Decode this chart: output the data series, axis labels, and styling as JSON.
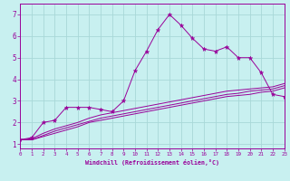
{
  "xlabel": "Windchill (Refroidissement éolien,°C)",
  "background_color": "#c8f0f0",
  "grid_color": "#a8d8d8",
  "line_color": "#990099",
  "xlim": [
    0,
    23
  ],
  "ylim": [
    0.8,
    7.5
  ],
  "xticks": [
    0,
    1,
    2,
    3,
    4,
    5,
    6,
    7,
    8,
    9,
    10,
    11,
    12,
    13,
    14,
    15,
    16,
    17,
    18,
    19,
    20,
    21,
    22,
    23
  ],
  "yticks": [
    1,
    2,
    3,
    4,
    5,
    6,
    7
  ],
  "series": [
    {
      "x": [
        0,
        1,
        2,
        3,
        4,
        5,
        6,
        7,
        8,
        9,
        10,
        11,
        12,
        13,
        14,
        15,
        16,
        17,
        18,
        19,
        20,
        21,
        22,
        23
      ],
      "y": [
        1.2,
        1.3,
        2.0,
        2.1,
        2.7,
        2.7,
        2.7,
        2.6,
        2.5,
        3.0,
        4.4,
        5.3,
        6.3,
        7.0,
        6.5,
        5.9,
        5.4,
        5.3,
        5.5,
        5.0,
        5.0,
        4.3,
        3.3,
        3.2
      ],
      "marker": true
    },
    {
      "x": [
        0,
        1,
        2,
        3,
        4,
        5,
        6,
        7,
        8,
        9,
        10,
        11,
        12,
        13,
        14,
        15,
        16,
        17,
        18,
        19,
        20,
        21,
        22,
        23
      ],
      "y": [
        1.2,
        1.25,
        1.5,
        1.7,
        1.85,
        2.0,
        2.2,
        2.35,
        2.45,
        2.55,
        2.65,
        2.75,
        2.85,
        2.95,
        3.05,
        3.15,
        3.25,
        3.35,
        3.45,
        3.5,
        3.55,
        3.6,
        3.65,
        3.8
      ],
      "marker": false
    },
    {
      "x": [
        0,
        1,
        2,
        3,
        4,
        5,
        6,
        7,
        8,
        9,
        10,
        11,
        12,
        13,
        14,
        15,
        16,
        17,
        18,
        19,
        20,
        21,
        22,
        23
      ],
      "y": [
        1.2,
        1.2,
        1.4,
        1.6,
        1.75,
        1.9,
        2.05,
        2.2,
        2.3,
        2.4,
        2.5,
        2.6,
        2.7,
        2.8,
        2.9,
        3.0,
        3.1,
        3.2,
        3.3,
        3.35,
        3.45,
        3.5,
        3.55,
        3.7
      ],
      "marker": false
    },
    {
      "x": [
        0,
        1,
        2,
        3,
        4,
        5,
        6,
        7,
        8,
        9,
        10,
        11,
        12,
        13,
        14,
        15,
        16,
        17,
        18,
        19,
        20,
        21,
        22,
        23
      ],
      "y": [
        1.2,
        1.2,
        1.35,
        1.5,
        1.65,
        1.8,
        2.0,
        2.1,
        2.2,
        2.3,
        2.4,
        2.5,
        2.6,
        2.7,
        2.8,
        2.9,
        3.0,
        3.1,
        3.2,
        3.25,
        3.3,
        3.4,
        3.45,
        3.6
      ],
      "marker": false
    }
  ]
}
